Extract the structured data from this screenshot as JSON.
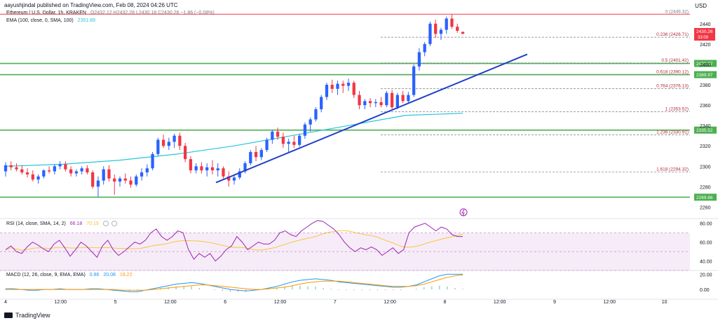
{
  "header": {
    "publisher": "aayushjindal published on TradingView.com, Feb 08, 2024 04:26 UTC",
    "currency": "USD"
  },
  "legend": {
    "symbol": "Ethereum / U.S. Dollar, 1h, KRAKEN",
    "ohlc": "O2432.12 H2432.28 L2430.18 C2430.26 −1.86 (−0.08%)",
    "ema_label": "EMA (100, close, 0, SMA, 100)",
    "ema_value": "2351.89"
  },
  "rsi_legend": {
    "label": "RSI (14, close, SMA, 14, 2)",
    "v1": "66.18",
    "v2": "70.19"
  },
  "macd_legend": {
    "label": "MACD (12, 26, close, 9, EMA, EMA)",
    "v1": "0.86",
    "v2": "20.08",
    "v3": "19.22"
  },
  "footer": {
    "brand": "TradingView"
  },
  "colors": {
    "up": "#2962ff",
    "down": "#f23645",
    "ema": "#26c6da",
    "support": "#4caf50",
    "resistance": "#f23645",
    "trendline": "#1e40c8",
    "rsi": "#9c27b0",
    "rsi_ma": "#fbc02d",
    "macd": "#2196f3",
    "signal": "#ff9800"
  },
  "chart_data": [
    {
      "type": "candlestick",
      "y_axis": {
        "min": 2250,
        "max": 2455,
        "ticks": [
          2260,
          2280,
          2300,
          2320,
          2340,
          2360,
          2380,
          2400,
          2420,
          2440
        ]
      },
      "x_ticks": [
        "4",
        "12:00",
        "5",
        "12:00",
        "6",
        "12:00",
        "7",
        "12:00",
        "8",
        "12:00",
        "9",
        "12:00",
        "10"
      ],
      "candles": [
        [
          2295,
          2304,
          2290,
          2301
        ],
        [
          2301,
          2305,
          2296,
          2299
        ],
        [
          2299,
          2303,
          2295,
          2297
        ],
        [
          2297,
          2301,
          2292,
          2294
        ],
        [
          2294,
          2298,
          2289,
          2292
        ],
        [
          2292,
          2296,
          2285,
          2287
        ],
        [
          2287,
          2292,
          2283,
          2290
        ],
        [
          2290,
          2297,
          2288,
          2296
        ],
        [
          2296,
          2300,
          2293,
          2295
        ],
        [
          2295,
          2302,
          2292,
          2300
        ],
        [
          2300,
          2305,
          2297,
          2302
        ],
        [
          2302,
          2305,
          2295,
          2297
        ],
        [
          2297,
          2300,
          2290,
          2293
        ],
        [
          2293,
          2297,
          2290,
          2295
        ],
        [
          2295,
          2300,
          2292,
          2298
        ],
        [
          2298,
          2301,
          2292,
          2294
        ],
        [
          2294,
          2296,
          2278,
          2280
        ],
        [
          2280,
          2290,
          2270,
          2286
        ],
        [
          2286,
          2300,
          2282,
          2297
        ],
        [
          2297,
          2301,
          2285,
          2288
        ],
        [
          2288,
          2292,
          2272,
          2285
        ],
        [
          2285,
          2290,
          2280,
          2288
        ],
        [
          2288,
          2293,
          2283,
          2286
        ],
        [
          2286,
          2290,
          2279,
          2282
        ],
        [
          2282,
          2292,
          2280,
          2290
        ],
        [
          2290,
          2298,
          2286,
          2294
        ],
        [
          2294,
          2302,
          2290,
          2298
        ],
        [
          2298,
          2314,
          2296,
          2312
        ],
        [
          2312,
          2328,
          2310,
          2326
        ],
        [
          2326,
          2331,
          2318,
          2320
        ],
        [
          2320,
          2328,
          2316,
          2324
        ],
        [
          2324,
          2332,
          2318,
          2330
        ],
        [
          2330,
          2333,
          2316,
          2320
        ],
        [
          2320,
          2323,
          2304,
          2307
        ],
        [
          2307,
          2310,
          2293,
          2296
        ],
        [
          2296,
          2303,
          2293,
          2300
        ],
        [
          2300,
          2304,
          2293,
          2296
        ],
        [
          2296,
          2303,
          2290,
          2299
        ],
        [
          2299,
          2306,
          2292,
          2296
        ],
        [
          2296,
          2303,
          2290,
          2298
        ],
        [
          2298,
          2300,
          2288,
          2290
        ],
        [
          2290,
          2295,
          2280,
          2286
        ],
        [
          2286,
          2292,
          2282,
          2289
        ],
        [
          2289,
          2298,
          2287,
          2295
        ],
        [
          2295,
          2305,
          2293,
          2303
        ],
        [
          2303,
          2316,
          2301,
          2314
        ],
        [
          2314,
          2320,
          2305,
          2309
        ],
        [
          2309,
          2318,
          2306,
          2316
        ],
        [
          2316,
          2328,
          2314,
          2326
        ],
        [
          2326,
          2336,
          2322,
          2334
        ],
        [
          2334,
          2338,
          2326,
          2329
        ],
        [
          2329,
          2333,
          2318,
          2322
        ],
        [
          2322,
          2327,
          2314,
          2324
        ],
        [
          2324,
          2330,
          2318,
          2321
        ],
        [
          2321,
          2332,
          2319,
          2330
        ],
        [
          2330,
          2343,
          2327,
          2341
        ],
        [
          2341,
          2348,
          2334,
          2346
        ],
        [
          2346,
          2358,
          2344,
          2356
        ],
        [
          2356,
          2370,
          2353,
          2368
        ],
        [
          2368,
          2382,
          2365,
          2380
        ],
        [
          2380,
          2385,
          2372,
          2376
        ],
        [
          2376,
          2384,
          2370,
          2381
        ],
        [
          2381,
          2384,
          2372,
          2379
        ],
        [
          2379,
          2386,
          2374,
          2382
        ],
        [
          2382,
          2384,
          2367,
          2370
        ],
        [
          2370,
          2374,
          2356,
          2360
        ],
        [
          2360,
          2366,
          2356,
          2364
        ],
        [
          2364,
          2367,
          2358,
          2362
        ],
        [
          2362,
          2366,
          2358,
          2363
        ],
        [
          2363,
          2368,
          2358,
          2360
        ],
        [
          2360,
          2374,
          2358,
          2372
        ],
        [
          2372,
          2375,
          2356,
          2358
        ],
        [
          2358,
          2372,
          2356,
          2370
        ],
        [
          2370,
          2374,
          2362,
          2364
        ],
        [
          2364,
          2373,
          2362,
          2370
        ],
        [
          2370,
          2400,
          2368,
          2398
        ],
        [
          2398,
          2416,
          2394,
          2412
        ],
        [
          2412,
          2422,
          2408,
          2420
        ],
        [
          2420,
          2442,
          2418,
          2440
        ],
        [
          2440,
          2444,
          2426,
          2430
        ],
        [
          2430,
          2436,
          2424,
          2434
        ],
        [
          2434,
          2447,
          2430,
          2445
        ],
        [
          2445,
          2449,
          2435,
          2437
        ],
        [
          2437,
          2440,
          2431,
          2433
        ],
        [
          2432,
          2432,
          2430,
          2430
        ]
      ],
      "ema": {
        "name": "EMA",
        "values": [
          2300,
          2302,
          2306,
          2312,
          2320,
          2330,
          2340,
          2350,
          2352
        ]
      },
      "horizontal_levels": [
        {
          "value": 2449.32,
          "label": "0 (2449.32)"
        },
        {
          "value": 2426.71,
          "label": "0.236 (2426.71)"
        },
        {
          "value": 2401.42,
          "label": "0.5 (2401.42)"
        },
        {
          "value": 2390.12,
          "label": "0.618 (2390.12)"
        },
        {
          "value": 2376.13,
          "label": "0.764 (2376.13)"
        },
        {
          "value": 2353.52,
          "label": "1 (2353.52)"
        },
        {
          "value": 2330.91,
          "label": "1.236 (2330.91)"
        },
        {
          "value": 2294.32,
          "label": "1.618 (2294.32)"
        }
      ],
      "support_resistance": [
        2400.97,
        2389.97,
        2335.52,
        2269.66
      ],
      "price_labels": [
        "2400.97",
        "2389.97",
        "2335.52",
        "2269.66"
      ],
      "current_price": "2430.26",
      "countdown": "33:09"
    },
    {
      "type": "line",
      "name": "RSI",
      "ylim": [
        30,
        85
      ],
      "ticks": [
        40,
        60,
        80
      ],
      "band": [
        30,
        70
      ],
      "rsi": [
        52,
        56,
        50,
        48,
        55,
        60,
        57,
        53,
        50,
        58,
        62,
        54,
        45,
        52,
        60,
        56,
        50,
        44,
        56,
        62,
        52,
        46,
        50,
        55,
        60,
        58,
        62,
        70,
        74,
        66,
        62,
        66,
        72,
        70,
        52,
        42,
        48,
        44,
        48,
        40,
        45,
        52,
        56,
        66,
        60,
        52,
        56,
        60,
        58,
        58,
        62,
        70,
        72,
        68,
        66,
        72,
        76,
        80,
        83,
        82,
        78,
        74,
        68,
        60,
        54,
        50,
        54,
        52,
        55,
        52,
        46,
        50,
        54,
        48,
        52,
        70,
        76,
        78,
        80,
        76,
        72,
        76,
        74,
        68,
        66,
        66
      ]
    },
    {
      "type": "line",
      "name": "MACD",
      "ylim": [
        -10,
        25
      ],
      "ticks": [
        0,
        20
      ],
      "macd": [
        1,
        1,
        0,
        -1,
        -1,
        0,
        0,
        1,
        0,
        0,
        0,
        1,
        1,
        0,
        -1,
        -2,
        -3,
        -3,
        -1,
        1,
        3,
        5,
        7,
        8,
        9,
        8,
        6,
        4,
        2,
        0,
        -1,
        -2,
        -1,
        0,
        2,
        4,
        7,
        10,
        12,
        13,
        14,
        13,
        12,
        10,
        9,
        8,
        7,
        6,
        5,
        4,
        3,
        3,
        4,
        6,
        10,
        14,
        18,
        20,
        20,
        20
      ],
      "signal": [
        0,
        0,
        0,
        0,
        0,
        0,
        0,
        0,
        0,
        0,
        0,
        0,
        0,
        0,
        0,
        -1,
        -1,
        -1,
        -1,
        0,
        1,
        2,
        3,
        4,
        5,
        6,
        6,
        5,
        4,
        3,
        2,
        1,
        0,
        0,
        1,
        2,
        3,
        5,
        7,
        9,
        10,
        11,
        11,
        11,
        10,
        9,
        8,
        7,
        6,
        5,
        4,
        4,
        4,
        5,
        7,
        10,
        13,
        16,
        18,
        19
      ]
    }
  ]
}
